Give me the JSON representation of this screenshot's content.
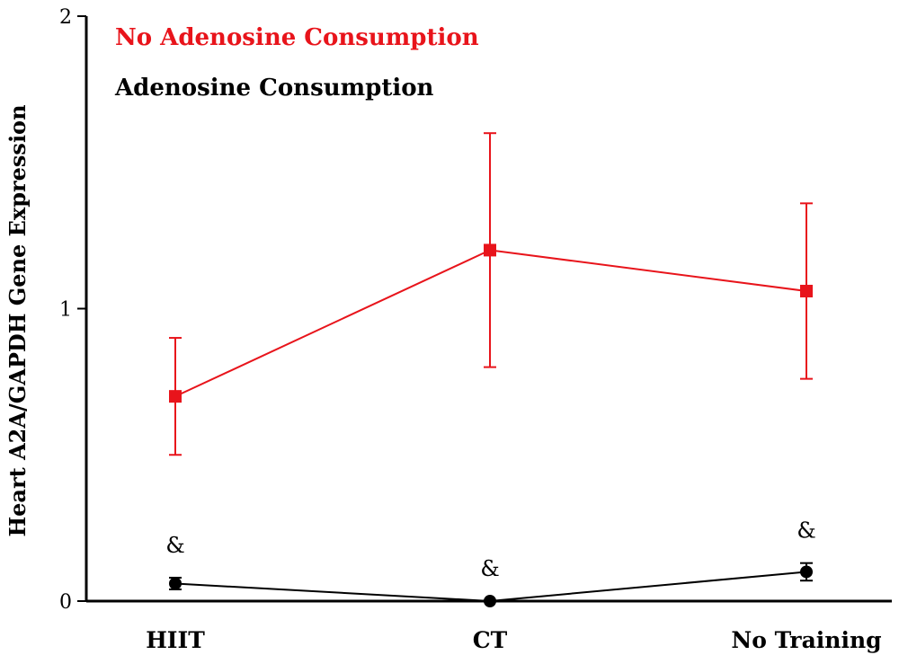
{
  "chart_data": {
    "type": "line",
    "title": "",
    "xlabel": "",
    "ylabel": "Heart A2A/GAPDH Gene Expression",
    "categories": [
      "HIIT",
      "CT",
      "No Training"
    ],
    "ylim": [
      0,
      2
    ],
    "yticks": [
      "0",
      "1",
      "2"
    ],
    "grid": false,
    "legend_position": "top-left",
    "series": [
      {
        "name": "No Adenosine Consumption",
        "color": "#e8141b",
        "marker": "square",
        "values": [
          0.7,
          1.2,
          1.06
        ],
        "error": [
          0.2,
          0.4,
          0.3
        ],
        "annotations": [
          "",
          "",
          ""
        ]
      },
      {
        "name": "Adenosine Consumption",
        "color": "#000000",
        "marker": "circle",
        "values": [
          0.06,
          0.0,
          0.1
        ],
        "error": [
          0.02,
          0.0,
          0.03
        ],
        "annotations": [
          "&",
          "&",
          "&"
        ]
      }
    ]
  }
}
